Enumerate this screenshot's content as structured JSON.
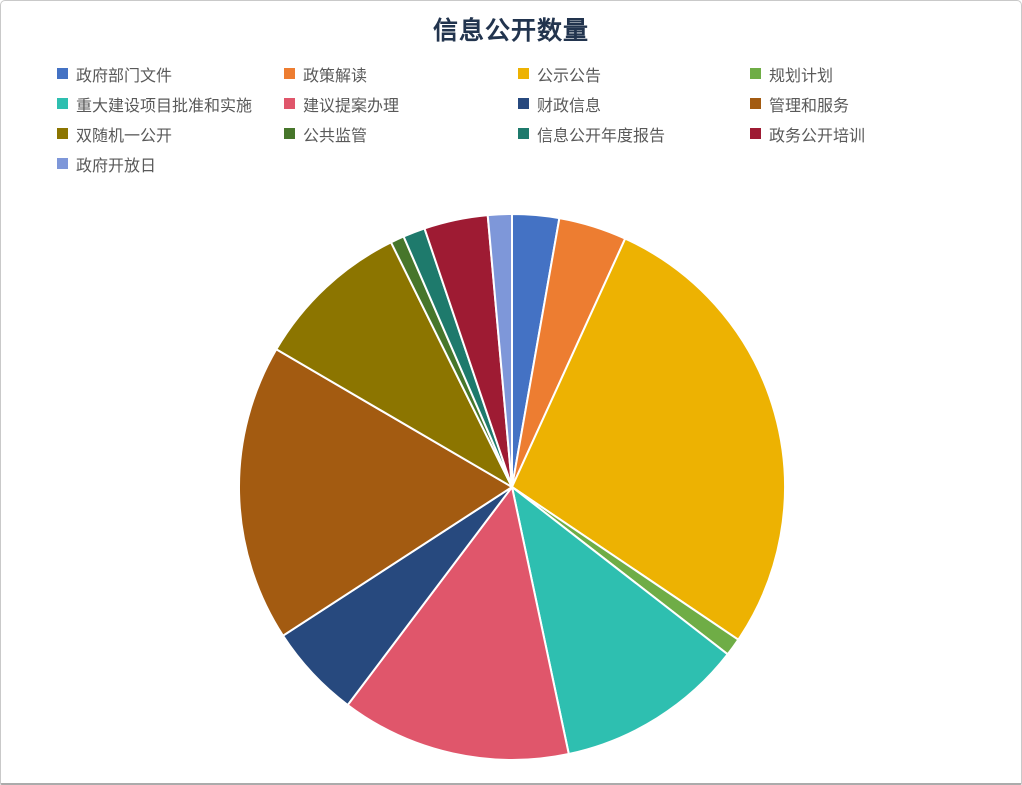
{
  "chart": {
    "background": "#ffffff",
    "border_color": "#ababab"
  },
  "chart_data": {
    "type": "pie",
    "title": "信息公开数量",
    "title_color": "#22344e",
    "legend_position": "top",
    "legend_columns": 4,
    "legend_text_color": "#595959",
    "separator_color": "#ffffff",
    "center": [
      511,
      486
    ],
    "radius": 273,
    "start_angle_deg": 0,
    "direction": "clockwise",
    "items": [
      {
        "label": "政府部门文件",
        "color": "#4472c4",
        "percent": 2.8,
        "start_deg": 0,
        "end_deg": 10
      },
      {
        "label": "政策解读",
        "color": "#ed7d31",
        "percent": 4.0,
        "start_deg": 10,
        "end_deg": 24.5
      },
      {
        "label": "公示公告",
        "color": "#edb202",
        "percent": 27.6,
        "start_deg": 24.5,
        "end_deg": 124
      },
      {
        "label": "规划计划",
        "color": "#6fad46",
        "percent": 1.1,
        "start_deg": 124,
        "end_deg": 127.8
      },
      {
        "label": "重大建设项目批准和实施",
        "color": "#2ebfb0",
        "percent": 11.2,
        "start_deg": 127.8,
        "end_deg": 168
      },
      {
        "label": "建议提案办理",
        "color": "#e0566b",
        "percent": 13.6,
        "start_deg": 168,
        "end_deg": 217
      },
      {
        "label": "财政信息",
        "color": "#27497e",
        "percent": 5.6,
        "start_deg": 217,
        "end_deg": 237
      },
      {
        "label": "管理和服务",
        "color": "#a35b11",
        "percent": 17.6,
        "start_deg": 237,
        "end_deg": 300.3
      },
      {
        "label": "双随机一公开",
        "color": "#8c7500",
        "percent": 9.3,
        "start_deg": 300.3,
        "end_deg": 333.7
      },
      {
        "label": "公共监管",
        "color": "#47762b",
        "percent": 0.8,
        "start_deg": 333.7,
        "end_deg": 336.6
      },
      {
        "label": "信息公开年度报告",
        "color": "#1e7a6c",
        "percent": 1.3,
        "start_deg": 336.6,
        "end_deg": 341.3
      },
      {
        "label": "政务公开培训",
        "color": "#9e1b33",
        "percent": 3.8,
        "start_deg": 341.3,
        "end_deg": 354.9
      },
      {
        "label": "政府开放日",
        "color": "#7e97d9",
        "percent": 1.4,
        "start_deg": 354.9,
        "end_deg": 360
      }
    ]
  }
}
